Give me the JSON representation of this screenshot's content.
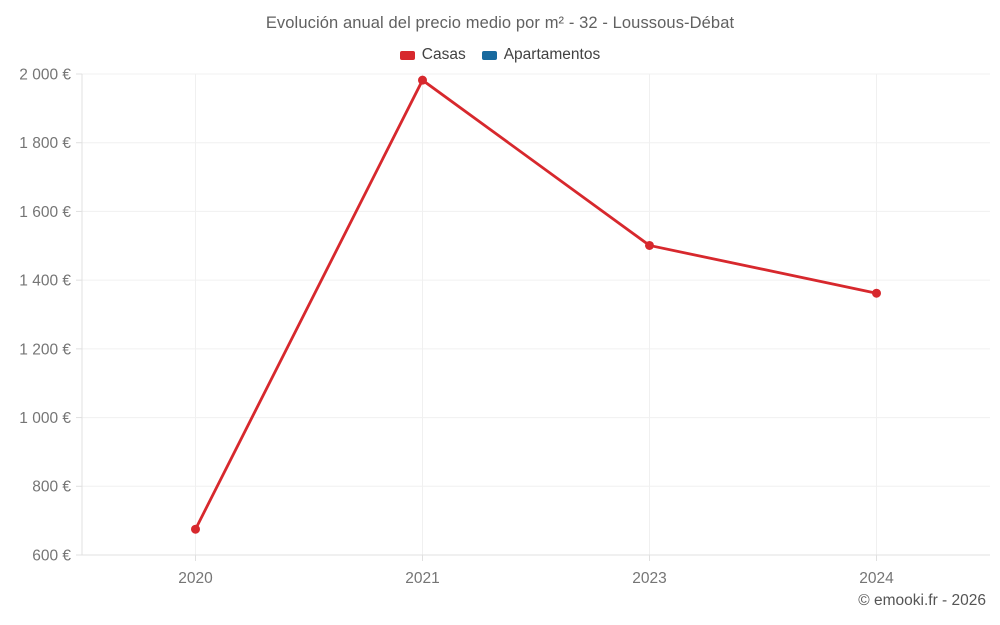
{
  "chart": {
    "title": "Evolución anual del precio medio por m² - 32 - Loussous-Débat",
    "attribution": "© emooki.fr - 2026",
    "legend": [
      {
        "label": "Casas",
        "color": "#d7282d"
      },
      {
        "label": "Apartamentos",
        "color": "#17699e"
      }
    ]
  },
  "chart_data": {
    "type": "line",
    "title": "Evolución anual del precio medio por m² - 32 - Loussous-Débat",
    "xlabel": "",
    "ylabel": "",
    "categories": [
      "2020",
      "2021",
      "2023",
      "2024"
    ],
    "series": [
      {
        "name": "Casas",
        "color": "#d7282d",
        "values": [
          675,
          1982,
          1501,
          1362
        ]
      },
      {
        "name": "Apartamentos",
        "color": "#17699e",
        "values": []
      }
    ],
    "ylim": [
      600,
      2000
    ],
    "y_tick_values": [
      600,
      800,
      1000,
      1200,
      1400,
      1600,
      1800,
      2000
    ],
    "y_tick_labels": [
      "600 €",
      "800 €",
      "1 000 €",
      "1 200 €",
      "1 400 €",
      "1 600 €",
      "1 800 €",
      "2 000 €"
    ],
    "grid": true,
    "legend_position": "top",
    "grid_color": "#f0f0f0",
    "axis_color": "#e0e0e0",
    "tick_label_color": "#757575"
  }
}
